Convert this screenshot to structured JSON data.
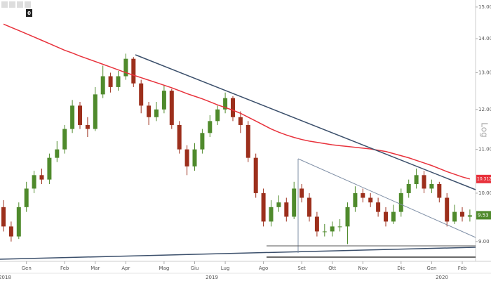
{
  "badge": "0",
  "chart_data": {
    "type": "candlestick",
    "log_scale": true,
    "axis_title": "Log",
    "categories": [
      null,
      null,
      null,
      "Gen",
      null,
      null,
      null,
      null,
      "Feb",
      null,
      null,
      null,
      "Mar",
      null,
      null,
      null,
      "Apr",
      null,
      null,
      null,
      null,
      "Mag",
      null,
      null,
      null,
      "Giu",
      null,
      null,
      null,
      "Lug",
      null,
      null,
      null,
      null,
      "Ago",
      null,
      null,
      null,
      null,
      "Set",
      null,
      null,
      null,
      "Ott",
      null,
      null,
      null,
      "Nov",
      null,
      null,
      null,
      null,
      "Dic",
      null,
      null,
      null,
      "Gen",
      null,
      null,
      null,
      "Feb",
      null
    ],
    "years": [
      "2018",
      "2019",
      "2020"
    ],
    "series": [
      {
        "up_color": "#4f8a2c",
        "down_color": "#9c2f1c",
        "open": [
          9.7,
          9.3,
          9.1,
          9.7,
          10.1,
          10.4,
          10.3,
          10.8,
          11.0,
          11.5,
          12.1,
          11.6,
          11.5,
          12.4,
          12.9,
          12.6,
          12.9,
          13.4,
          12.7,
          12.1,
          11.8,
          12.0,
          12.5,
          11.6,
          11.0,
          10.6,
          11.0,
          11.4,
          11.7,
          12.0,
          12.3,
          11.8,
          11.6,
          10.8,
          10.0,
          9.4,
          9.7,
          9.8,
          9.5,
          10.1,
          9.9,
          9.5,
          9.2,
          9.2,
          9.3,
          9.3,
          9.7,
          10.0,
          9.9,
          9.8,
          9.6,
          9.4,
          9.6,
          10.0,
          10.2,
          10.4,
          10.1,
          10.2,
          9.9,
          9.4,
          9.6,
          9.5
        ],
        "high": [
          9.85,
          9.4,
          9.8,
          10.25,
          10.5,
          10.55,
          10.9,
          11.2,
          11.6,
          12.25,
          12.2,
          11.8,
          12.6,
          13.2,
          13.0,
          13.05,
          13.55,
          13.45,
          12.8,
          12.2,
          12.2,
          12.65,
          12.55,
          11.7,
          11.1,
          11.15,
          11.5,
          11.85,
          12.1,
          12.45,
          12.35,
          11.95,
          11.7,
          10.9,
          10.1,
          9.85,
          9.95,
          9.9,
          10.25,
          10.2,
          10.0,
          9.6,
          9.35,
          9.4,
          9.45,
          9.8,
          10.15,
          10.1,
          10.0,
          9.9,
          9.7,
          9.75,
          10.1,
          10.3,
          10.55,
          10.5,
          10.3,
          10.25,
          10.0,
          9.75,
          9.7,
          9.65
        ],
        "low": [
          9.2,
          9.0,
          9.05,
          9.6,
          10.0,
          10.2,
          10.2,
          10.7,
          10.9,
          11.4,
          11.5,
          11.3,
          11.45,
          12.3,
          12.45,
          12.5,
          12.8,
          12.6,
          11.9,
          11.6,
          11.7,
          11.9,
          11.5,
          10.9,
          10.4,
          10.5,
          10.9,
          11.3,
          11.6,
          11.9,
          11.7,
          11.4,
          10.7,
          9.9,
          9.3,
          9.3,
          9.6,
          9.4,
          9.45,
          9.8,
          9.4,
          9.1,
          9.1,
          9.1,
          9.2,
          8.95,
          9.6,
          9.8,
          9.7,
          9.5,
          9.3,
          9.35,
          9.5,
          9.9,
          10.1,
          10.0,
          10.0,
          9.8,
          9.3,
          9.35,
          9.4,
          9.4
        ],
        "close": [
          9.3,
          9.1,
          9.7,
          10.1,
          10.4,
          10.3,
          10.8,
          11.0,
          11.5,
          12.1,
          11.6,
          11.5,
          12.4,
          12.9,
          12.6,
          12.9,
          13.4,
          12.7,
          12.1,
          11.8,
          12.0,
          12.5,
          11.6,
          11.0,
          10.6,
          11.0,
          11.4,
          11.7,
          12.0,
          12.3,
          11.8,
          11.6,
          10.8,
          10.0,
          9.4,
          9.7,
          9.8,
          9.5,
          10.1,
          9.9,
          9.5,
          9.2,
          9.2,
          9.3,
          9.3,
          9.7,
          10.0,
          9.9,
          9.8,
          9.6,
          9.4,
          9.6,
          10.0,
          10.2,
          10.4,
          10.1,
          10.2,
          9.9,
          9.4,
          9.6,
          9.5,
          9.53
        ]
      },
      {
        "type": "line",
        "color": "#e8323c",
        "values": [
          14.45,
          14.35,
          14.25,
          14.15,
          14.05,
          13.95,
          13.85,
          13.75,
          13.65,
          13.57,
          13.48,
          13.4,
          13.32,
          13.24,
          13.16,
          13.08,
          13.0,
          12.93,
          12.86,
          12.79,
          12.72,
          12.65,
          12.58,
          12.5,
          12.42,
          12.35,
          12.28,
          12.2,
          12.12,
          12.05,
          11.98,
          11.9,
          11.8,
          11.7,
          11.6,
          11.5,
          11.42,
          11.35,
          11.29,
          11.24,
          11.2,
          11.17,
          11.14,
          11.11,
          11.09,
          11.07,
          11.05,
          11.03,
          11.01,
          10.98,
          10.95,
          10.9,
          10.85,
          10.8,
          10.74,
          10.68,
          10.62,
          10.55,
          10.48,
          10.42,
          10.36,
          10.3125
        ]
      }
    ],
    "ylim": [
      8.62,
      15.23
    ],
    "yticks": [
      {
        "value": 9,
        "label": "9.00"
      },
      {
        "value": 10,
        "label": "10.00"
      },
      {
        "value": 11,
        "label": "11.00"
      },
      {
        "value": 12,
        "label": "12.00"
      },
      {
        "value": 13,
        "label": "13.00"
      },
      {
        "value": 14,
        "label": "14.00"
      },
      {
        "value": 15,
        "label": "15.00"
      }
    ]
  }
}
